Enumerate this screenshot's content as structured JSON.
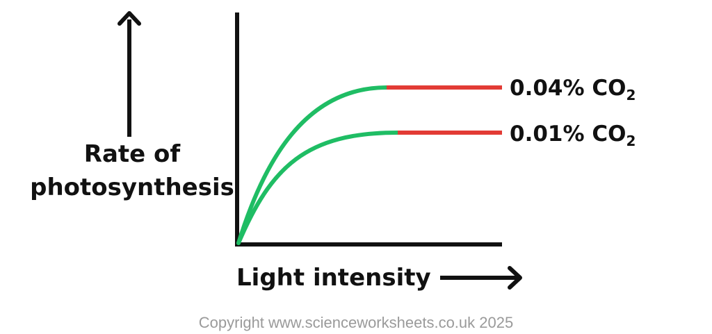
{
  "axes": {
    "ylabel_line1": "Rate of",
    "ylabel_line2": "photosynthesis",
    "xlabel": "Light intensity"
  },
  "series": [
    {
      "label": "0.04% CO",
      "subscript": "2"
    },
    {
      "label": "0.01% CO",
      "subscript": "2"
    }
  ],
  "colors": {
    "limited_by_light": "#1fbd64",
    "plateau": "#e23b35",
    "axis": "#111111"
  },
  "copyright": "Copyright www.scienceworksheets.co.uk 2025"
}
